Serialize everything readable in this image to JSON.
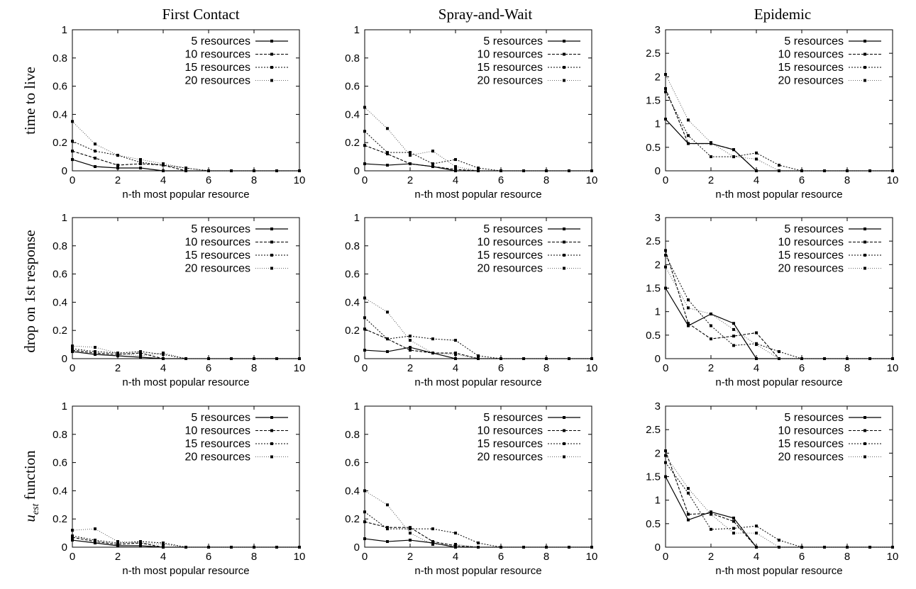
{
  "column_titles": [
    "First Contact",
    "Spray-and-Wait",
    "Epidemic"
  ],
  "row_labels": [
    "time to live",
    "drop on 1st response",
    "u_est function"
  ],
  "chart_data": [
    {
      "type": "line",
      "row": 0,
      "col": 0,
      "xlabel": "n-th most popular resource",
      "xlim": [
        0,
        10
      ],
      "ylim": [
        0,
        1
      ],
      "yticks": [
        0,
        0.2,
        0.4,
        0.6,
        0.8,
        1
      ],
      "xticks": [
        0,
        2,
        4,
        6,
        8,
        10
      ],
      "legend": "top-right",
      "x": [
        0,
        1,
        2,
        3,
        4,
        5,
        6,
        7,
        8,
        9,
        10
      ],
      "series": [
        {
          "name": "5 resources",
          "values": [
            0.08,
            0.03,
            0.02,
            0.02,
            0,
            0,
            0,
            0,
            0,
            0,
            0
          ]
        },
        {
          "name": "10 resources",
          "values": [
            0.14,
            0.09,
            0.04,
            0.05,
            0.04,
            0,
            0,
            0,
            0,
            0,
            0
          ]
        },
        {
          "name": "15 resources",
          "values": [
            0.21,
            0.14,
            0.11,
            0.06,
            0.04,
            0.02,
            0,
            0,
            0,
            0,
            0
          ]
        },
        {
          "name": "20 resources",
          "values": [
            0.35,
            0.19,
            0.11,
            0.08,
            0.05,
            0.02,
            0,
            0,
            0,
            0,
            0
          ]
        }
      ]
    },
    {
      "type": "line",
      "row": 0,
      "col": 1,
      "xlabel": "n-th most popular resource",
      "xlim": [
        0,
        10
      ],
      "ylim": [
        0,
        1
      ],
      "yticks": [
        0,
        0.2,
        0.4,
        0.6,
        0.8,
        1
      ],
      "xticks": [
        0,
        2,
        4,
        6,
        8,
        10
      ],
      "legend": "top-right",
      "x": [
        0,
        1,
        2,
        3,
        4,
        5,
        6,
        7,
        8,
        9,
        10
      ],
      "series": [
        {
          "name": "5 resources",
          "values": [
            0.05,
            0.04,
            0.05,
            0.03,
            0,
            0,
            0,
            0,
            0,
            0,
            0
          ]
        },
        {
          "name": "10 resources",
          "values": [
            0.18,
            0.12,
            0.05,
            0.03,
            0.01,
            0,
            0,
            0,
            0,
            0,
            0
          ]
        },
        {
          "name": "15 resources",
          "values": [
            0.28,
            0.13,
            0.13,
            0.05,
            0.08,
            0.02,
            0,
            0,
            0,
            0,
            0
          ]
        },
        {
          "name": "20 resources",
          "values": [
            0.45,
            0.3,
            0.11,
            0.14,
            0.03,
            0,
            0,
            0,
            0,
            0,
            0
          ]
        }
      ]
    },
    {
      "type": "line",
      "row": 0,
      "col": 2,
      "xlabel": "n-th most popular resource",
      "xlim": [
        0,
        10
      ],
      "ylim": [
        0,
        3
      ],
      "yticks": [
        0,
        0.5,
        1,
        1.5,
        2,
        2.5,
        3
      ],
      "xticks": [
        0,
        2,
        4,
        6,
        8,
        10
      ],
      "legend": "top-right",
      "x": [
        0,
        1,
        2,
        3,
        4,
        5,
        6,
        7,
        8,
        9,
        10
      ],
      "series": [
        {
          "name": "5 resources",
          "values": [
            1.1,
            0.58,
            0.58,
            0.45,
            0,
            0,
            0,
            0,
            0,
            0,
            0
          ]
        },
        {
          "name": "10 resources",
          "values": [
            1.75,
            0.58,
            0.58,
            0.45,
            0,
            0,
            0,
            0,
            0,
            0,
            0
          ]
        },
        {
          "name": "15 resources",
          "values": [
            1.68,
            0.75,
            0.3,
            0.3,
            0.38,
            0.12,
            0,
            0,
            0,
            0,
            0
          ]
        },
        {
          "name": "20 resources",
          "values": [
            2.05,
            1.08,
            0.6,
            0.3,
            0.25,
            0,
            0,
            0,
            0,
            0,
            0
          ]
        }
      ]
    },
    {
      "type": "line",
      "row": 1,
      "col": 0,
      "xlabel": "n-th most popular resource",
      "xlim": [
        0,
        10
      ],
      "ylim": [
        0,
        1
      ],
      "yticks": [
        0,
        0.2,
        0.4,
        0.6,
        0.8,
        1
      ],
      "xticks": [
        0,
        2,
        4,
        6,
        8,
        10
      ],
      "legend": "top-right",
      "x": [
        0,
        1,
        2,
        3,
        4,
        5,
        6,
        7,
        8,
        9,
        10
      ],
      "series": [
        {
          "name": "5 resources",
          "values": [
            0.05,
            0.03,
            0.02,
            0.01,
            0,
            0,
            0,
            0,
            0,
            0,
            0
          ]
        },
        {
          "name": "10 resources",
          "values": [
            0.06,
            0.04,
            0.03,
            0.04,
            0,
            0,
            0,
            0,
            0,
            0,
            0
          ]
        },
        {
          "name": "15 resources",
          "values": [
            0.07,
            0.05,
            0.04,
            0.05,
            0.03,
            0,
            0,
            0,
            0,
            0,
            0
          ]
        },
        {
          "name": "20 resources",
          "values": [
            0.09,
            0.08,
            0.04,
            0.02,
            0.04,
            0,
            0,
            0,
            0,
            0,
            0
          ]
        }
      ]
    },
    {
      "type": "line",
      "row": 1,
      "col": 1,
      "xlabel": "n-th most popular resource",
      "xlim": [
        0,
        10
      ],
      "ylim": [
        0,
        1
      ],
      "yticks": [
        0,
        0.2,
        0.4,
        0.6,
        0.8,
        1
      ],
      "xticks": [
        0,
        2,
        4,
        6,
        8,
        10
      ],
      "legend": "top-right",
      "x": [
        0,
        1,
        2,
        3,
        4,
        5,
        6,
        7,
        8,
        9,
        10
      ],
      "series": [
        {
          "name": "5 resources",
          "values": [
            0.06,
            0.05,
            0.08,
            0.04,
            0,
            0,
            0,
            0,
            0,
            0,
            0
          ]
        },
        {
          "name": "10 resources",
          "values": [
            0.21,
            0.14,
            0.06,
            0.04,
            0.04,
            0,
            0,
            0,
            0,
            0,
            0
          ]
        },
        {
          "name": "15 resources",
          "values": [
            0.29,
            0.14,
            0.16,
            0.14,
            0.13,
            0.02,
            0,
            0,
            0,
            0,
            0
          ]
        },
        {
          "name": "20 resources",
          "values": [
            0.43,
            0.33,
            0.13,
            0.04,
            0.03,
            0,
            0,
            0,
            0,
            0,
            0
          ]
        }
      ]
    },
    {
      "type": "line",
      "row": 1,
      "col": 2,
      "xlabel": "n-th most popular resource",
      "xlim": [
        0,
        10
      ],
      "ylim": [
        0,
        3
      ],
      "yticks": [
        0,
        0.5,
        1,
        1.5,
        2,
        2.5,
        3
      ],
      "xticks": [
        0,
        2,
        4,
        6,
        8,
        10
      ],
      "legend": "top-right",
      "x": [
        0,
        1,
        2,
        3,
        4,
        5,
        6,
        7,
        8,
        9,
        10
      ],
      "series": [
        {
          "name": "5 resources",
          "values": [
            1.5,
            0.7,
            0.95,
            0.75,
            0,
            0,
            0,
            0,
            0,
            0,
            0
          ]
        },
        {
          "name": "10 resources",
          "values": [
            2.3,
            0.75,
            0.42,
            0.48,
            0.55,
            0,
            0,
            0,
            0,
            0,
            0
          ]
        },
        {
          "name": "15 resources",
          "values": [
            2.2,
            1.25,
            0.7,
            0.28,
            0.32,
            0.15,
            0,
            0,
            0,
            0,
            0
          ]
        },
        {
          "name": "20 resources",
          "values": [
            1.95,
            1.08,
            0.95,
            0.62,
            0.3,
            0,
            0,
            0,
            0,
            0,
            0
          ]
        }
      ]
    },
    {
      "type": "line",
      "row": 2,
      "col": 0,
      "xlabel": "n-th most popular resource",
      "xlim": [
        0,
        10
      ],
      "ylim": [
        0,
        1
      ],
      "yticks": [
        0,
        0.2,
        0.4,
        0.6,
        0.8,
        1
      ],
      "xticks": [
        0,
        2,
        4,
        6,
        8,
        10
      ],
      "legend": "top-right",
      "x": [
        0,
        1,
        2,
        3,
        4,
        5,
        6,
        7,
        8,
        9,
        10
      ],
      "series": [
        {
          "name": "5 resources",
          "values": [
            0.05,
            0.03,
            0.01,
            0.01,
            0,
            0,
            0,
            0,
            0,
            0,
            0
          ]
        },
        {
          "name": "10 resources",
          "values": [
            0.07,
            0.04,
            0.02,
            0.03,
            0,
            0,
            0,
            0,
            0,
            0,
            0
          ]
        },
        {
          "name": "15 resources",
          "values": [
            0.08,
            0.05,
            0.03,
            0.04,
            0.03,
            0,
            0,
            0,
            0,
            0,
            0
          ]
        },
        {
          "name": "20 resources",
          "values": [
            0.12,
            0.13,
            0.04,
            0.03,
            0.02,
            0,
            0,
            0,
            0,
            0,
            0
          ]
        }
      ]
    },
    {
      "type": "line",
      "row": 2,
      "col": 1,
      "xlabel": "n-th most popular resource",
      "xlim": [
        0,
        10
      ],
      "ylim": [
        0,
        1
      ],
      "yticks": [
        0,
        0.2,
        0.4,
        0.6,
        0.8,
        1
      ],
      "xticks": [
        0,
        2,
        4,
        6,
        8,
        10
      ],
      "legend": "top-right",
      "x": [
        0,
        1,
        2,
        3,
        4,
        5,
        6,
        7,
        8,
        9,
        10
      ],
      "series": [
        {
          "name": "5 resources",
          "values": [
            0.06,
            0.04,
            0.05,
            0.03,
            0,
            0,
            0,
            0,
            0,
            0,
            0
          ]
        },
        {
          "name": "10 resources",
          "values": [
            0.18,
            0.14,
            0.14,
            0.04,
            0.01,
            0,
            0,
            0,
            0,
            0,
            0
          ]
        },
        {
          "name": "15 resources",
          "values": [
            0.25,
            0.13,
            0.13,
            0.13,
            0.1,
            0.03,
            0,
            0,
            0,
            0,
            0
          ]
        },
        {
          "name": "20 resources",
          "values": [
            0.4,
            0.3,
            0.1,
            0.02,
            0.02,
            0,
            0,
            0,
            0,
            0,
            0
          ]
        }
      ]
    },
    {
      "type": "line",
      "row": 2,
      "col": 2,
      "xlabel": "n-th most popular resource",
      "xlim": [
        0,
        10
      ],
      "ylim": [
        0,
        3
      ],
      "yticks": [
        0,
        0.5,
        1,
        1.5,
        2,
        2.5,
        3
      ],
      "xticks": [
        0,
        2,
        4,
        6,
        8,
        10
      ],
      "legend": "top-right",
      "x": [
        0,
        1,
        2,
        3,
        4,
        5,
        6,
        7,
        8,
        9,
        10
      ],
      "series": [
        {
          "name": "5 resources",
          "values": [
            1.5,
            0.58,
            0.75,
            0.62,
            0,
            0,
            0,
            0,
            0,
            0,
            0
          ]
        },
        {
          "name": "10 resources",
          "values": [
            2.05,
            0.7,
            0.72,
            0.55,
            0,
            0,
            0,
            0,
            0,
            0,
            0
          ]
        },
        {
          "name": "15 resources",
          "values": [
            1.8,
            1.15,
            0.38,
            0.4,
            0.45,
            0.15,
            0,
            0,
            0,
            0,
            0
          ]
        },
        {
          "name": "20 resources",
          "values": [
            1.95,
            1.25,
            0.7,
            0.3,
            0.3,
            0,
            0,
            0,
            0,
            0,
            0
          ]
        }
      ]
    }
  ]
}
